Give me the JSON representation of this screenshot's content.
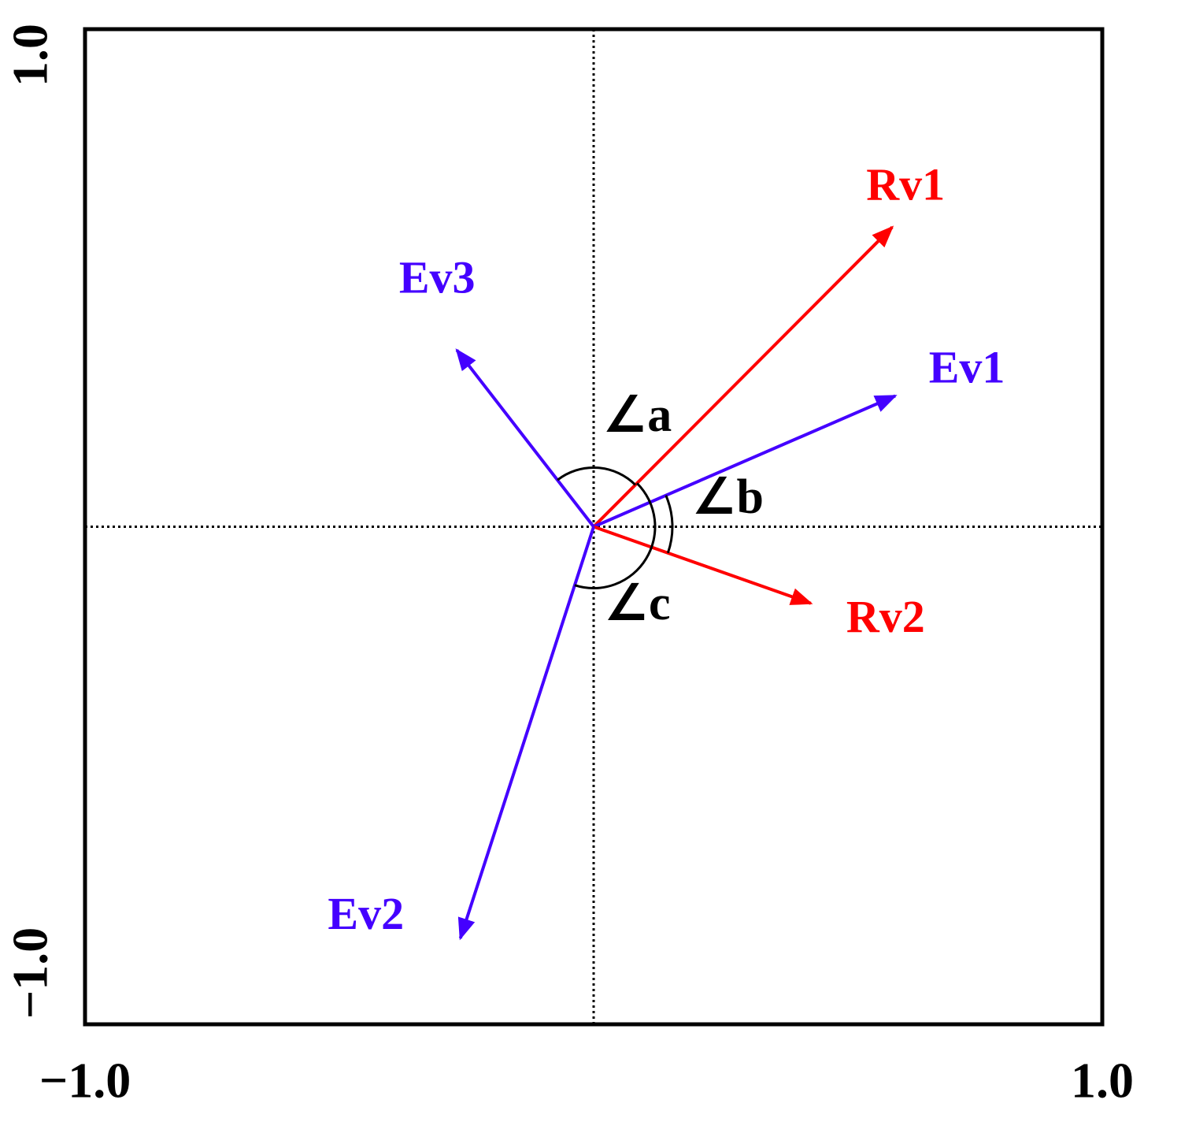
{
  "chart_data": {
    "type": "biplot",
    "vectors": [
      {
        "name": "Rv1",
        "color": "#ff0000",
        "x": 0.587,
        "y": 0.602
      },
      {
        "name": "Ev1",
        "color": "#4400ff",
        "x": 0.593,
        "y": 0.263
      },
      {
        "name": "Rv2",
        "color": "#ff0000",
        "x": 0.427,
        "y": -0.154
      },
      {
        "name": "Ev3",
        "color": "#4400ff",
        "x": -0.269,
        "y": 0.355
      },
      {
        "name": "Ev2",
        "color": "#4400ff",
        "x": -0.262,
        "y": -0.827
      }
    ],
    "annotations": [
      "∠a",
      "∠b",
      "∠c"
    ],
    "xlim": [
      -1,
      1
    ],
    "ylim": [
      -1,
      1
    ],
    "xticks": [
      {
        "value": -1,
        "label": "−1.0"
      },
      {
        "value": 1,
        "label": "1.0"
      }
    ],
    "yticks": [
      {
        "value": -1,
        "label": "−1.0"
      },
      {
        "value": 1,
        "label": "1.0"
      }
    ]
  }
}
